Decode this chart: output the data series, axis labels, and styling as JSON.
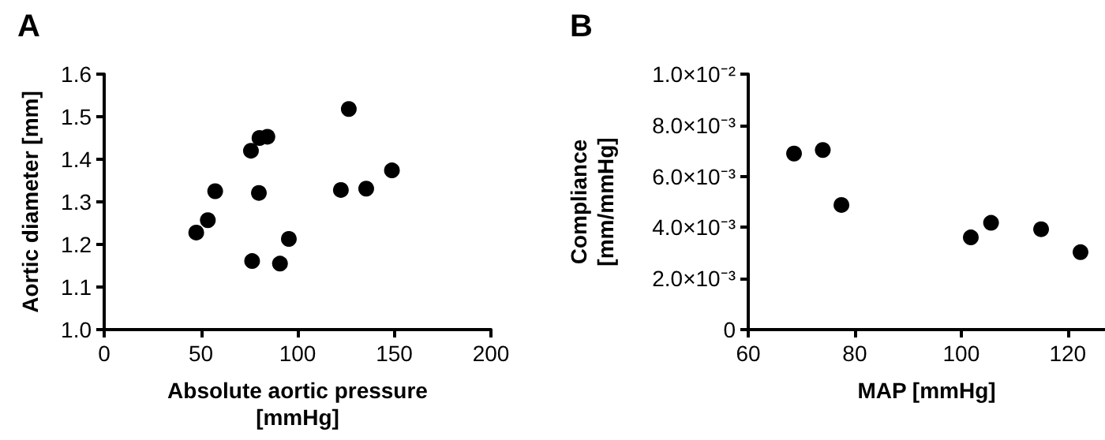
{
  "chart_data": [
    {
      "type": "scatter",
      "title": "A",
      "xlabel": "Absolute aortic pressure\n[mmHg]",
      "ylabel": "Aortic diameter [mm]",
      "x": [
        47.6,
        53.6,
        57.4,
        75.9,
        80.3,
        84.4,
        80,
        76.5,
        90.9,
        95.5,
        122.4,
        126.5,
        135.5,
        148.8
      ],
      "series": [
        {
          "color": "#000000",
          "values": [
            1.228,
            1.257,
            1.325,
            1.42,
            1.45,
            1.453,
            1.321,
            1.161,
            1.155,
            1.213,
            1.328,
            1.518,
            1.331,
            1.374
          ]
        }
      ],
      "xlim": [
        0,
        200
      ],
      "xticks": [
        0,
        50,
        100,
        150,
        200
      ],
      "ylim": [
        1.0,
        1.6
      ],
      "yticks": [
        {
          "value": 1.0,
          "label": "1.0"
        },
        1.1,
        1.2,
        1.3,
        1.4,
        1.5,
        1.6
      ],
      "marker": "circle"
    },
    {
      "type": "scatter",
      "title": "B",
      "xlabel": "MAP [mmHg]",
      "ylabel": "Compliance\n[mm/mmHg]",
      "x": [
        68.6,
        74.0,
        77.5,
        101.8,
        105.6,
        115.0,
        122.4
      ],
      "series": [
        {
          "color": "#000000",
          "values": [
            0.00689,
            0.00703,
            0.00488,
            0.00361,
            0.00418,
            0.00393,
            0.00303
          ]
        }
      ],
      "xlim": [
        60,
        127
      ],
      "xticks": [
        60,
        80,
        100,
        120
      ],
      "ylim": [
        0,
        0.01
      ],
      "yticks": [
        0,
        {
          "value": 0.002,
          "label": "2.0×10⁻³"
        },
        {
          "value": 0.004,
          "label": "4.0×10⁻³"
        },
        {
          "value": 0.006,
          "label": "6.0×10⁻³"
        },
        {
          "value": 0.008,
          "label": "8.0×10⁻³"
        },
        {
          "value": 0.01,
          "label": "1.0×10⁻²"
        }
      ],
      "marker": "circle"
    }
  ]
}
